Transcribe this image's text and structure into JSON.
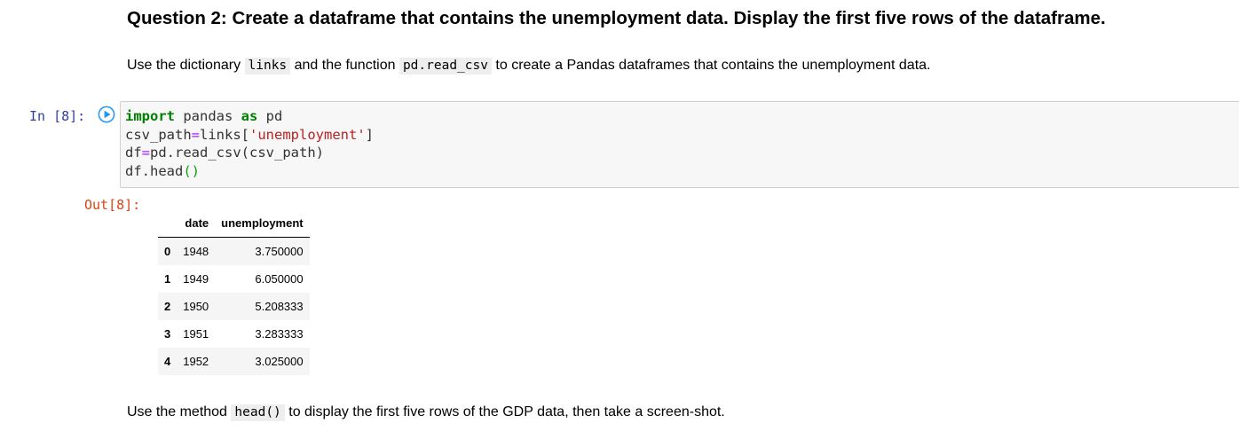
{
  "markdown": {
    "heading": "Question 2: Create a dataframe that contains the unemployment data. Display the first five rows of the dataframe.",
    "para1": {
      "t1": "Use the dictionary ",
      "c1": "links",
      "t2": " and the function ",
      "c2": "pd.read_csv",
      "t3": " to create a Pandas dataframes that contains the unemployment data."
    },
    "para2": {
      "t1": "Use the method ",
      "c1": "head()",
      "t2": " to display the first five rows of the GDP data, then take a screen-shot."
    }
  },
  "code_cell": {
    "prompt": "In [8]:",
    "run_icon": "play-circle-icon",
    "accent_color": "#2196f3",
    "lines": [
      "import pandas as pd",
      "csv_path=links['unemployment']",
      "df=pd.read_csv(csv_path)",
      "df.head()"
    ]
  },
  "output_cell": {
    "prompt": "Out[8]:",
    "table": {
      "columns": [
        "date",
        "unemployment"
      ],
      "rows": [
        {
          "index": "0",
          "date": "1948",
          "unemployment": "3.750000"
        },
        {
          "index": "1",
          "date": "1949",
          "unemployment": "6.050000"
        },
        {
          "index": "2",
          "date": "1950",
          "unemployment": "5.208333"
        },
        {
          "index": "3",
          "date": "1951",
          "unemployment": "3.283333"
        },
        {
          "index": "4",
          "date": "1952",
          "unemployment": "3.025000"
        }
      ]
    }
  }
}
